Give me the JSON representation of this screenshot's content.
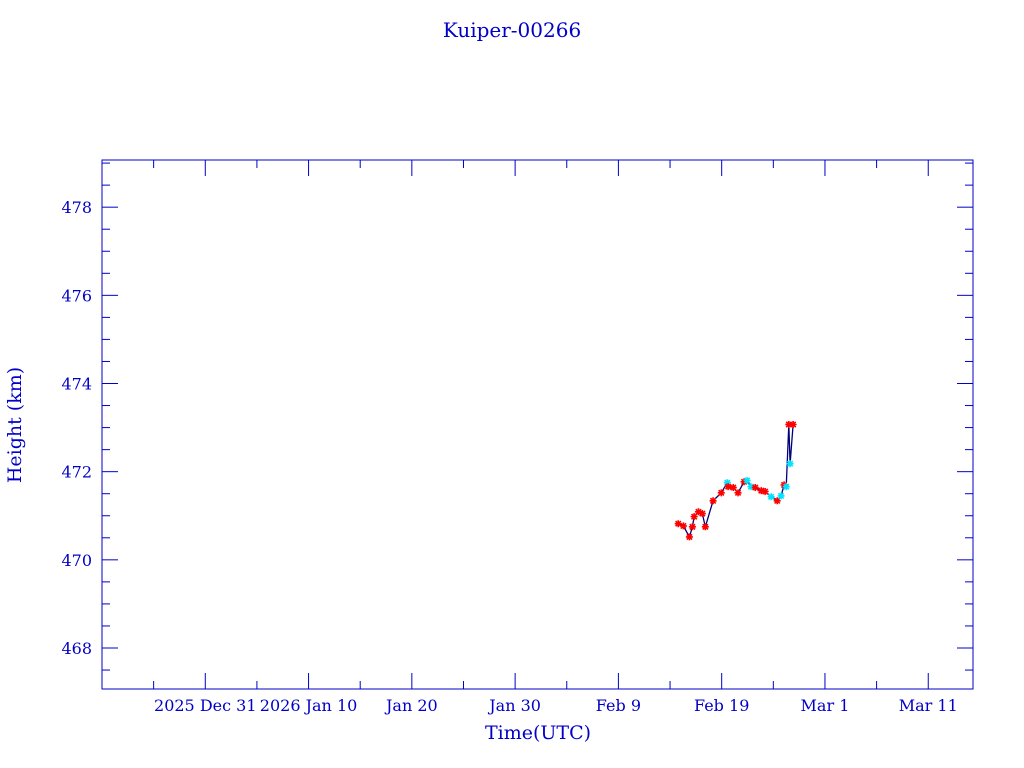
{
  "chart_data": {
    "type": "scatter",
    "title": "Kuiper-00266",
    "xlabel": "Time(UTC)",
    "ylabel": "Height (km)",
    "xlim": [
      "2025-12-21T00:00",
      "2026-03-15T08:00"
    ],
    "ylim": [
      467.07,
      479.07
    ],
    "grid": false,
    "x_ticks": [
      {
        "date": "2025-12-31",
        "label": "2025 Dec 31"
      },
      {
        "date": "2026-01-10",
        "label": "2026 Jan 10"
      },
      {
        "date": "2026-01-20",
        "label": "Jan 20"
      },
      {
        "date": "2026-01-30",
        "label": "Jan 30"
      },
      {
        "date": "2026-02-09",
        "label": "Feb  9"
      },
      {
        "date": "2026-02-19",
        "label": "Feb 19"
      },
      {
        "date": "2026-03-01",
        "label": "Mar  1"
      },
      {
        "date": "2026-03-11",
        "label": "Mar 11"
      }
    ],
    "y_ticks": [
      468,
      470,
      472,
      474,
      476,
      478
    ],
    "colors": {
      "axis": "#0000c8",
      "line": "#00007a",
      "marker_a": "#ff0000",
      "marker_b": "#00e5ff"
    },
    "points": [
      {
        "t": "2026-02-14T19:00",
        "h": 470.82,
        "c": "a"
      },
      {
        "t": "2026-02-15T07:00",
        "h": 470.77,
        "c": "a"
      },
      {
        "t": "2026-02-15T21:00",
        "h": 470.52,
        "c": "a"
      },
      {
        "t": "2026-02-16T04:00",
        "h": 470.75,
        "c": "a"
      },
      {
        "t": "2026-02-16T08:00",
        "h": 470.98,
        "c": "a"
      },
      {
        "t": "2026-02-16T18:00",
        "h": 471.09,
        "c": "a"
      },
      {
        "t": "2026-02-17T03:00",
        "h": 471.05,
        "c": "a"
      },
      {
        "t": "2026-02-17T10:00",
        "h": 470.75,
        "c": "a"
      },
      {
        "t": "2026-02-18T04:00",
        "h": 471.34,
        "c": "a"
      },
      {
        "t": "2026-02-18T23:00",
        "h": 471.52,
        "c": "a"
      },
      {
        "t": "2026-02-19T13:00",
        "h": 471.75,
        "c": "b"
      },
      {
        "t": "2026-02-19T15:00",
        "h": 471.66,
        "c": "a"
      },
      {
        "t": "2026-02-20T03:00",
        "h": 471.64,
        "c": "a"
      },
      {
        "t": "2026-02-20T14:00",
        "h": 471.52,
        "c": "a"
      },
      {
        "t": "2026-02-21T04:00",
        "h": 471.77,
        "c": "a"
      },
      {
        "t": "2026-02-21T11:00",
        "h": 471.8,
        "c": "b"
      },
      {
        "t": "2026-02-21T20:00",
        "h": 471.66,
        "c": "b"
      },
      {
        "t": "2026-02-22T06:00",
        "h": 471.64,
        "c": "a"
      },
      {
        "t": "2026-02-22T20:00",
        "h": 471.57,
        "c": "a"
      },
      {
        "t": "2026-02-23T05:00",
        "h": 471.55,
        "c": "a"
      },
      {
        "t": "2026-02-23T19:00",
        "h": 471.43,
        "c": "b"
      },
      {
        "t": "2026-02-24T09:00",
        "h": 471.34,
        "c": "a"
      },
      {
        "t": "2026-02-24T18:00",
        "h": 471.45,
        "c": "b"
      },
      {
        "t": "2026-02-25T01:00",
        "h": 471.7,
        "c": "a"
      },
      {
        "t": "2026-02-25T06:00",
        "h": 471.66,
        "c": "b"
      },
      {
        "t": "2026-02-25T12:00",
        "h": 473.07,
        "c": "a"
      },
      {
        "t": "2026-02-25T15:00",
        "h": 472.18,
        "c": "b"
      },
      {
        "t": "2026-02-25T22:00",
        "h": 473.07,
        "c": "a"
      }
    ]
  }
}
